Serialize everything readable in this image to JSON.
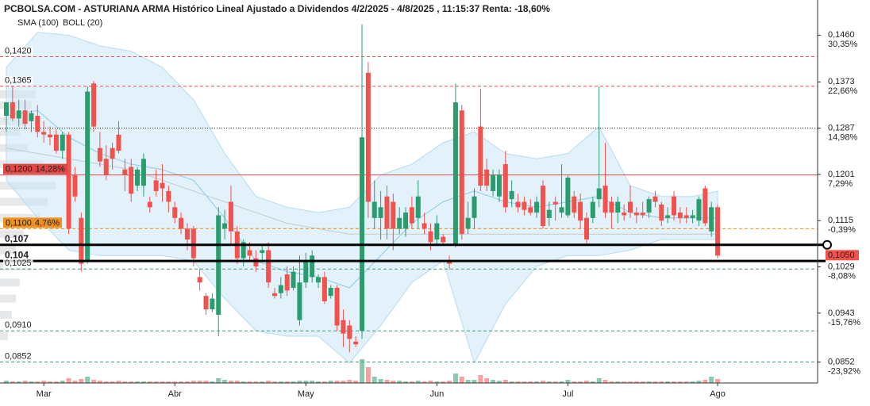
{
  "chart_data": {
    "type": "candlestick",
    "title": "PCBOLSA.COM - ASTURIANA ARMA Histórico Lineal Ajustado a Dividendos 4/2/2025 - 4/8/2025 , 11:15:37 Renta: -18,60%",
    "legend": [
      {
        "name": "SMA (100)",
        "color": "#8ccbeb"
      },
      {
        "name": "BOLL (20)",
        "color": "#c2cbd2"
      }
    ],
    "up_color": "#2a9d6f",
    "down_color": "#f2524d",
    "categories": [
      null,
      null,
      null,
      null,
      null,
      null,
      "Mar",
      null,
      null,
      null,
      null,
      null,
      null,
      null,
      null,
      null,
      null,
      null,
      null,
      null,
      null,
      null,
      null,
      null,
      null,
      null,
      null,
      "Abr",
      null,
      null,
      null,
      null,
      null,
      null,
      null,
      null,
      null,
      null,
      null,
      null,
      null,
      null,
      null,
      null,
      null,
      null,
      null,
      null,
      "May",
      null,
      null,
      null,
      null,
      null,
      null,
      null,
      null,
      null,
      null,
      null,
      null,
      null,
      null,
      null,
      null,
      null,
      null,
      null,
      null,
      "Jun",
      null,
      null,
      null,
      null,
      null,
      null,
      null,
      null,
      null,
      null,
      null,
      null,
      null,
      null,
      null,
      null,
      null,
      null,
      null,
      null,
      "Jul",
      null,
      null,
      null,
      null,
      null,
      null,
      null,
      null,
      null,
      null,
      null,
      null,
      null,
      null,
      null,
      null,
      null,
      null,
      null,
      null,
      null,
      null,
      null,
      "Ago"
    ],
    "candles": [
      [
        0.131,
        0.1335,
        0.128,
        0.1335
      ],
      [
        0.1335,
        0.1365,
        0.13,
        0.1305
      ],
      [
        0.1305,
        0.134,
        0.129,
        0.132
      ],
      [
        0.132,
        0.134,
        0.1285,
        0.1295
      ],
      [
        0.13,
        0.132,
        0.128,
        0.1315
      ],
      [
        0.131,
        0.133,
        0.127,
        0.128
      ],
      [
        0.128,
        0.13,
        0.126,
        0.1275
      ],
      [
        0.1275,
        0.129,
        0.1255,
        0.127
      ],
      [
        0.1275,
        0.1285,
        0.124,
        0.1245
      ],
      [
        0.1245,
        0.128,
        0.123,
        0.1275
      ],
      [
        0.1275,
        0.128,
        0.109,
        0.11
      ],
      [
        0.12,
        0.1215,
        0.115,
        0.116
      ],
      [
        0.112,
        0.113,
        0.102,
        0.1035
      ],
      [
        0.104,
        0.1365,
        0.1035,
        0.1355
      ],
      [
        0.137,
        0.1375,
        0.128,
        0.129
      ],
      [
        0.125,
        0.128,
        0.1215,
        0.1225
      ],
      [
        0.123,
        0.1255,
        0.119,
        0.12
      ],
      [
        0.125,
        0.126,
        0.121,
        0.123
      ],
      [
        0.1275,
        0.13,
        0.124,
        0.1245
      ],
      [
        0.121,
        0.123,
        0.117,
        0.12
      ],
      [
        0.1215,
        0.123,
        0.115,
        0.1165
      ],
      [
        0.118,
        0.1215,
        0.117,
        0.121
      ],
      [
        0.118,
        0.124,
        0.116,
        0.123
      ],
      [
        0.115,
        0.116,
        0.113,
        0.114
      ],
      [
        0.119,
        0.121,
        0.116,
        0.117
      ],
      [
        0.1185,
        0.122,
        0.115,
        0.1175
      ],
      [
        0.117,
        0.118,
        0.113,
        0.115
      ],
      [
        0.114,
        0.115,
        0.111,
        0.112
      ],
      [
        0.112,
        0.113,
        0.109,
        0.11
      ],
      [
        0.11,
        0.111,
        0.106,
        0.108
      ],
      [
        0.11,
        0.1105,
        0.103,
        0.1045
      ],
      [
        0.101,
        0.1025,
        0.0985,
        0.1
      ],
      [
        0.0975,
        0.098,
        0.094,
        0.095
      ],
      [
        0.095,
        0.098,
        0.0945,
        0.097
      ],
      [
        0.094,
        0.114,
        0.09,
        0.1125
      ],
      [
        0.11,
        0.1135,
        0.108,
        0.111
      ],
      [
        0.115,
        0.118,
        0.107,
        0.1095
      ],
      [
        0.1095,
        0.1105,
        0.1035,
        0.1045
      ],
      [
        0.1045,
        0.108,
        0.103,
        0.1075
      ],
      [
        0.106,
        0.1075,
        0.104,
        0.105
      ],
      [
        0.1045,
        0.106,
        0.102,
        0.103
      ],
      [
        0.1055,
        0.107,
        0.104,
        0.106
      ],
      [
        0.106,
        0.1075,
        0.099,
        0.1
      ],
      [
        0.098,
        0.099,
        0.097,
        0.0975
      ],
      [
        0.098,
        0.101,
        0.097,
        0.0995
      ],
      [
        0.1015,
        0.103,
        0.0975,
        0.0985
      ],
      [
        0.099,
        0.103,
        0.0985,
        0.102
      ],
      [
        0.093,
        0.105,
        0.092,
        0.1
      ],
      [
        0.1,
        0.1055,
        0.099,
        0.104
      ],
      [
        0.101,
        0.106,
        0.1,
        0.105
      ],
      [
        0.1,
        0.1015,
        0.099,
        0.101
      ],
      [
        0.101,
        0.102,
        0.096,
        0.0965
      ],
      [
        0.0975,
        0.0995,
        0.097,
        0.099
      ],
      [
        0.099,
        0.0995,
        0.091,
        0.092
      ],
      [
        0.093,
        0.095,
        0.088,
        0.0905
      ],
      [
        0.092,
        0.093,
        0.087,
        0.0895
      ],
      [
        0.089,
        0.09,
        0.088,
        0.0885
      ],
      [
        0.091,
        0.148,
        0.0895,
        0.127
      ],
      [
        0.139,
        0.141,
        0.112,
        0.115
      ],
      [
        0.112,
        0.119,
        0.11,
        0.115
      ],
      [
        0.112,
        0.117,
        0.108,
        0.114
      ],
      [
        0.116,
        0.118,
        0.108,
        0.11
      ],
      [
        0.115,
        0.1165,
        0.106,
        0.11
      ],
      [
        0.11,
        0.114,
        0.109,
        0.112
      ],
      [
        0.11,
        0.114,
        0.1085,
        0.113
      ],
      [
        0.114,
        0.116,
        0.11,
        0.111
      ],
      [
        0.112,
        0.119,
        0.11,
        0.116
      ],
      [
        0.111,
        0.113,
        0.109,
        0.11
      ],
      [
        0.1095,
        0.111,
        0.106,
        0.1075
      ],
      [
        0.108,
        0.1125,
        0.107,
        0.111
      ],
      [
        0.1085,
        0.109,
        0.107,
        0.1075
      ],
      [
        0.104,
        0.105,
        0.1025,
        0.1035
      ],
      [
        0.107,
        0.137,
        0.1065,
        0.1335
      ],
      [
        0.132,
        0.133,
        0.108,
        0.109
      ],
      [
        0.11,
        0.115,
        0.109,
        0.112
      ],
      [
        0.112,
        0.1175,
        0.11,
        0.116
      ],
      [
        0.129,
        0.136,
        0.117,
        0.118
      ],
      [
        0.121,
        0.123,
        0.117,
        0.118
      ],
      [
        0.117,
        0.121,
        0.116,
        0.12
      ],
      [
        0.116,
        0.121,
        0.115,
        0.12
      ],
      [
        0.122,
        0.1245,
        0.113,
        0.114
      ],
      [
        0.1155,
        0.119,
        0.114,
        0.117
      ],
      [
        0.115,
        0.1165,
        0.113,
        0.114
      ],
      [
        0.115,
        0.116,
        0.1125,
        0.1135
      ],
      [
        0.114,
        0.1155,
        0.1125,
        0.113
      ],
      [
        0.113,
        0.116,
        0.112,
        0.115
      ],
      [
        0.118,
        0.119,
        0.11,
        0.1105
      ],
      [
        0.112,
        0.115,
        0.1105,
        0.1135
      ],
      [
        0.115,
        0.116,
        0.1115,
        0.1145
      ],
      [
        0.113,
        0.122,
        0.112,
        0.114
      ],
      [
        0.1125,
        0.12,
        0.112,
        0.1195
      ],
      [
        0.116,
        0.117,
        0.112,
        0.113
      ],
      [
        0.115,
        0.1165,
        0.11,
        0.1115
      ],
      [
        0.112,
        0.113,
        0.107,
        0.108
      ],
      [
        0.112,
        0.116,
        0.111,
        0.115
      ],
      [
        0.1155,
        0.1365,
        0.114,
        0.1175
      ],
      [
        0.118,
        0.126,
        0.112,
        0.113
      ],
      [
        0.115,
        0.116,
        0.11,
        0.113
      ],
      [
        0.113,
        0.116,
        0.111,
        0.115
      ],
      [
        0.113,
        0.1145,
        0.1115,
        0.1125
      ],
      [
        0.115,
        0.118,
        0.112,
        0.113
      ],
      [
        0.113,
        0.114,
        0.111,
        0.1125
      ],
      [
        0.113,
        0.115,
        0.112,
        0.1125
      ],
      [
        0.113,
        0.116,
        0.112,
        0.1155
      ],
      [
        0.116,
        0.117,
        0.114,
        0.115
      ],
      [
        0.1145,
        0.115,
        0.1105,
        0.1115
      ],
      [
        0.112,
        0.114,
        0.111,
        0.1125
      ],
      [
        0.116,
        0.117,
        0.1115,
        0.1125
      ],
      [
        0.113,
        0.114,
        0.111,
        0.112
      ],
      [
        0.1125,
        0.114,
        0.111,
        0.112
      ],
      [
        0.112,
        0.1135,
        0.111,
        0.1125
      ],
      [
        0.1115,
        0.116,
        0.1105,
        0.1155
      ],
      [
        0.1175,
        0.118,
        0.1105,
        0.111
      ],
      [
        0.1095,
        0.115,
        0.1085,
        0.114
      ],
      [
        0.114,
        0.1145,
        0.1045,
        0.105
      ]
    ],
    "volume": [
      3,
      2,
      2,
      3,
      2,
      2,
      3,
      2,
      2,
      3,
      6,
      3,
      5,
      8,
      4,
      3,
      2,
      2,
      3,
      2,
      2,
      2,
      2,
      2,
      2,
      2,
      2,
      2,
      2,
      2,
      3,
      3,
      3,
      2,
      6,
      4,
      3,
      3,
      2,
      2,
      2,
      2,
      3,
      2,
      2,
      2,
      2,
      3,
      3,
      3,
      2,
      2,
      3,
      3,
      3,
      4,
      3,
      30,
      20,
      8,
      5,
      4,
      3,
      3,
      2,
      2,
      3,
      2,
      3,
      2,
      2,
      3,
      12,
      8,
      4,
      4,
      10,
      6,
      4,
      3,
      4,
      2,
      2,
      2,
      2,
      2,
      3,
      2,
      2,
      2,
      4,
      2,
      2,
      3,
      2,
      6,
      4,
      2,
      2,
      2,
      2,
      2,
      2,
      2,
      2,
      2,
      2,
      2,
      2,
      2,
      2,
      3,
      4,
      8,
      5
    ],
    "ylim": [
      0.0813,
      0.1518
    ],
    "yticks": [
      {
        "value": 0.146,
        "label": "0,1460"
      },
      {
        "value": 0.1373,
        "label": "0,1373"
      },
      {
        "value": 0.1287,
        "label": "0,1287"
      },
      {
        "value": 0.1201,
        "label": "0,1201"
      },
      {
        "value": 0.1115,
        "label": "0,1115"
      },
      {
        "value": 0.1029,
        "label": "0,1029"
      },
      {
        "value": 0.0943,
        "label": "0,0943"
      },
      {
        "value": 0.0852,
        "label": "0,0852"
      }
    ],
    "ytick_changes": [
      {
        "value": 30.35,
        "label": "30,35%"
      },
      {
        "value": 22.66,
        "label": "22,66%"
      },
      {
        "value": 14.98,
        "label": "14,98%"
      },
      {
        "value": 7.29,
        "label": "7,29%"
      },
      {
        "value": -0.39,
        "label": "-0,39%"
      },
      {
        "value": -8.08,
        "label": "-8,08%"
      },
      {
        "value": -15.76,
        "label": "-15,76%"
      },
      {
        "value": -23.92,
        "label": "-23,92%"
      }
    ],
    "indicator_x": [
      0,
      5,
      10,
      15,
      20,
      25,
      30,
      35,
      40,
      45,
      50,
      55,
      60,
      65,
      70,
      75,
      80,
      85,
      90,
      95,
      100,
      105,
      110,
      114
    ],
    "boll_upper": [
      0.14,
      0.1465,
      0.146,
      0.144,
      0.143,
      0.14,
      0.134,
      0.124,
      0.116,
      0.114,
      0.113,
      0.114,
      0.12,
      0.122,
      0.126,
      0.128,
      0.124,
      0.123,
      0.124,
      0.129,
      0.118,
      0.116,
      0.116,
      0.117
    ],
    "boll_lower": [
      0.119,
      0.112,
      0.106,
      0.105,
      0.105,
      0.105,
      0.104,
      0.097,
      0.091,
      0.09,
      0.09,
      0.085,
      0.092,
      0.1,
      0.104,
      0.085,
      0.096,
      0.103,
      0.105,
      0.105,
      0.106,
      0.108,
      0.108,
      0.108
    ],
    "boll_mid": [
      0.131,
      0.132,
      0.127,
      0.124,
      0.122,
      0.121,
      0.119,
      0.112,
      0.104,
      0.102,
      0.101,
      0.099,
      0.105,
      0.111,
      0.115,
      0.117,
      0.115,
      0.114,
      0.115,
      0.116,
      0.113,
      0.112,
      0.112,
      0.112
    ],
    "sma_100": [
      0.125,
      0.124,
      0.123,
      0.122,
      0.121,
      0.119,
      0.117,
      0.115,
      0.113,
      0.111,
      0.11,
      0.109,
      0.109,
      0.109,
      0.109,
      0.109,
      0.109,
      0.109,
      0.109,
      0.109,
      0.109,
      0.109,
      0.109,
      0.109
    ],
    "volume_profile": {
      "prices": [
        0.135,
        0.133,
        0.13,
        0.128,
        0.125,
        0.122,
        0.118,
        0.115,
        0.112,
        0.109,
        0.106,
        0.103,
        0.1,
        0.097,
        0.094,
        0.09
      ],
      "volumes": [
        45,
        40,
        30,
        25,
        35,
        55,
        70,
        60,
        50,
        30,
        20,
        40,
        25,
        20,
        15,
        10
      ]
    },
    "levels": [
      {
        "value": 0.142,
        "label": "0,1420",
        "color": "#e05050",
        "style": "dashed",
        "width": 1
      },
      {
        "value": 0.1365,
        "label": "0,1365",
        "color": "#e05050",
        "style": "dashed",
        "width": 1
      },
      {
        "value": 0.1287,
        "color": "#222222",
        "style": "dotted",
        "width": 1
      },
      {
        "value": 0.12,
        "label": "0,1200",
        "change": {
          "value": 14.28,
          "label": "14,28%"
        },
        "color": "#e04848",
        "style": "solid",
        "width": 1,
        "boxed": true
      },
      {
        "value": 0.11,
        "label": "0,1100",
        "change": {
          "value": 4.76,
          "label": "4,76%"
        },
        "color": "#f0901e",
        "style": "dashed",
        "width": 1,
        "boxed": true
      },
      {
        "value": 0.107,
        "label": "0,107",
        "color": "#000000",
        "style": "solid",
        "width": 3
      },
      {
        "value": 0.104,
        "label": "0,104",
        "color": "#000000",
        "style": "solid",
        "width": 3
      },
      {
        "value": 0.1025,
        "label": "0,1025",
        "color": "#3a9e78",
        "style": "dashed",
        "width": 1
      },
      {
        "value": 0.091,
        "label": "0,0910",
        "color": "#3a9e78",
        "style": "dashed",
        "width": 1
      },
      {
        "value": 0.0852,
        "label": "0,0852",
        "color": "#3a9e78",
        "style": "dashed",
        "width": 1
      }
    ],
    "last_price": {
      "value": 0.105,
      "label": "0,1050",
      "color": "#f2524d"
    }
  }
}
